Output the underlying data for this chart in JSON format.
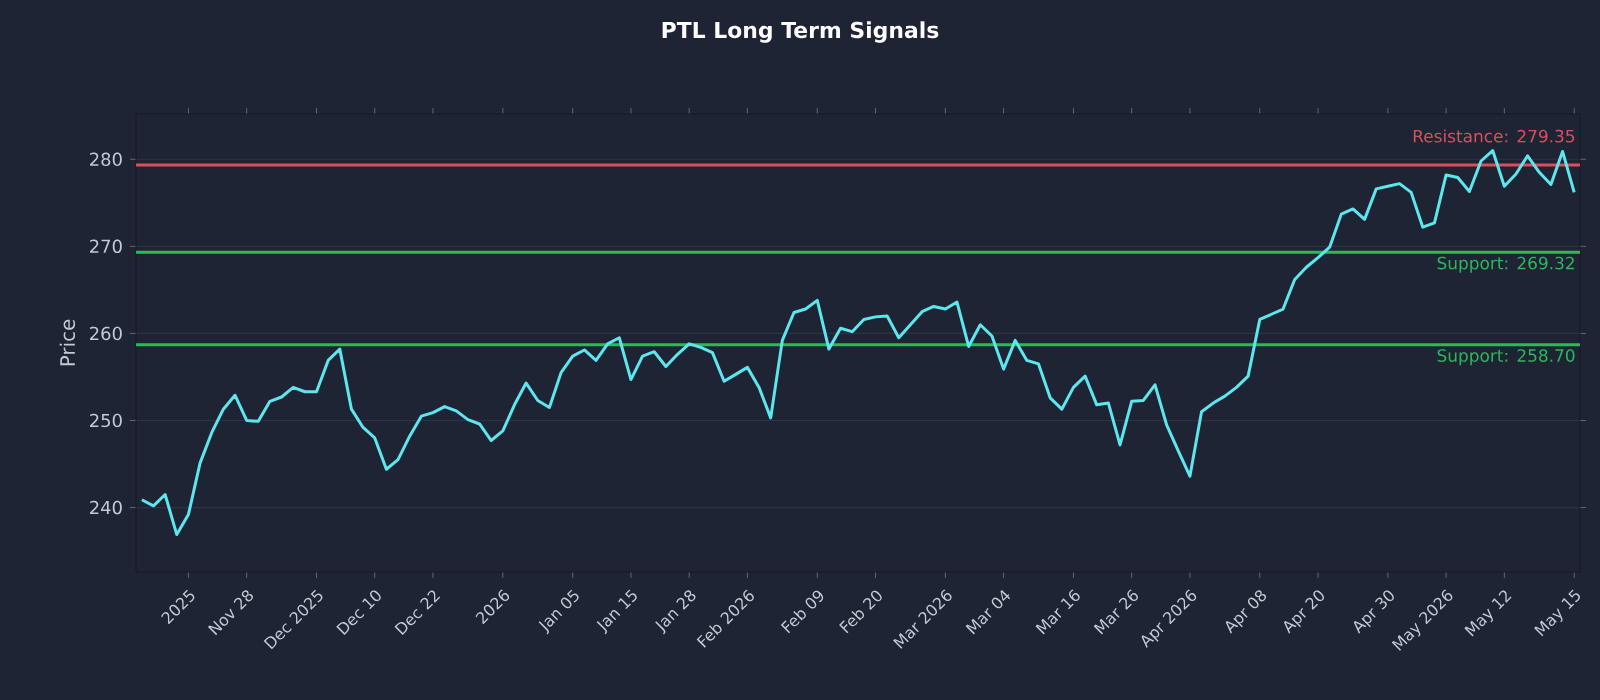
{
  "chart_data": {
    "type": "line",
    "title": "PTL Long Term Signals",
    "ylabel": "Price",
    "categories": [
      null,
      null,
      null,
      null,
      "2025",
      null,
      null,
      null,
      null,
      "Nov 28",
      null,
      null,
      null,
      null,
      null,
      "Dec 2025",
      null,
      null,
      null,
      null,
      "Dec 10",
      null,
      null,
      null,
      null,
      "Dec 22",
      null,
      null,
      null,
      null,
      null,
      "2026",
      null,
      null,
      null,
      null,
      null,
      "Jan 05",
      null,
      null,
      null,
      null,
      "Jan 15",
      null,
      null,
      null,
      null,
      "Jan 28",
      null,
      null,
      null,
      null,
      "Feb 2026",
      null,
      null,
      null,
      null,
      null,
      "Feb 09",
      null,
      null,
      null,
      null,
      "Feb 20",
      null,
      null,
      null,
      null,
      null,
      "Mar 2026",
      null,
      null,
      null,
      null,
      "Mar 04",
      null,
      null,
      null,
      null,
      null,
      "Mar 16",
      null,
      null,
      null,
      null,
      "Mar 26",
      null,
      null,
      null,
      null,
      "Apr 2026",
      null,
      null,
      null,
      null,
      null,
      "Apr 08",
      null,
      null,
      null,
      null,
      "Apr 20",
      null,
      null,
      null,
      null,
      null,
      "Apr 30",
      null,
      null,
      null,
      null,
      "May 2026",
      null,
      null,
      null,
      null,
      "May 12",
      null,
      null,
      null,
      null,
      null,
      "May 15"
    ],
    "series": [
      {
        "color": "#5ee6ef",
        "values": [
          240.9,
          240.2,
          241.5,
          236.9,
          239.2,
          245.1,
          248.6,
          251.3,
          252.9,
          250.0,
          249.9,
          252.2,
          252.7,
          253.8,
          253.3,
          253.3,
          256.9,
          258.2,
          251.3,
          249.2,
          248.0,
          244.4,
          245.5,
          248.2,
          250.5,
          250.9,
          251.6,
          251.1,
          250.1,
          249.6,
          247.7,
          248.8,
          251.8,
          254.3,
          252.3,
          251.5,
          255.5,
          257.4,
          258.1,
          256.9,
          258.8,
          259.5,
          254.7,
          257.4,
          257.9,
          256.2,
          257.6,
          258.8,
          258.4,
          257.8,
          254.5,
          255.3,
          256.1,
          253.8,
          250.3,
          259.2,
          262.4,
          262.8,
          263.8,
          258.2,
          260.6,
          260.2,
          261.6,
          261.9,
          262.0,
          259.5,
          261.0,
          262.5,
          263.1,
          262.8,
          263.6,
          258.5,
          261.0,
          259.7,
          255.9,
          259.2,
          256.9,
          256.5,
          252.6,
          251.3,
          253.8,
          255.1,
          251.8,
          252.0,
          247.2,
          252.2,
          252.3,
          254.1,
          249.5,
          246.5,
          243.6,
          251.0,
          252.0,
          252.8,
          253.8,
          255.1,
          261.6,
          262.2,
          262.8,
          266.2,
          267.6,
          268.7,
          269.9,
          273.7,
          274.3,
          273.1,
          276.6,
          276.9,
          277.2,
          276.2,
          272.2,
          272.7,
          278.2,
          277.9,
          276.3,
          279.8,
          281.0,
          276.9,
          278.3,
          280.4,
          278.5,
          277.1,
          280.9,
          276.2
        ]
      }
    ],
    "ylim": [
      232.6,
      285.2
    ],
    "yticks": [
      240,
      250,
      260,
      270,
      280
    ],
    "grid": "y",
    "ref_lines": [
      {
        "axis": "y",
        "value": 279.35,
        "label": "Resistance: 279.35",
        "color": "#d9505c"
      },
      {
        "axis": "y",
        "value": 269.32,
        "label": "Support: 269.32",
        "color": "#2eb85c"
      },
      {
        "axis": "y",
        "value": 258.7,
        "label": "Support: 258.70",
        "color": "#2eb85c"
      }
    ]
  }
}
